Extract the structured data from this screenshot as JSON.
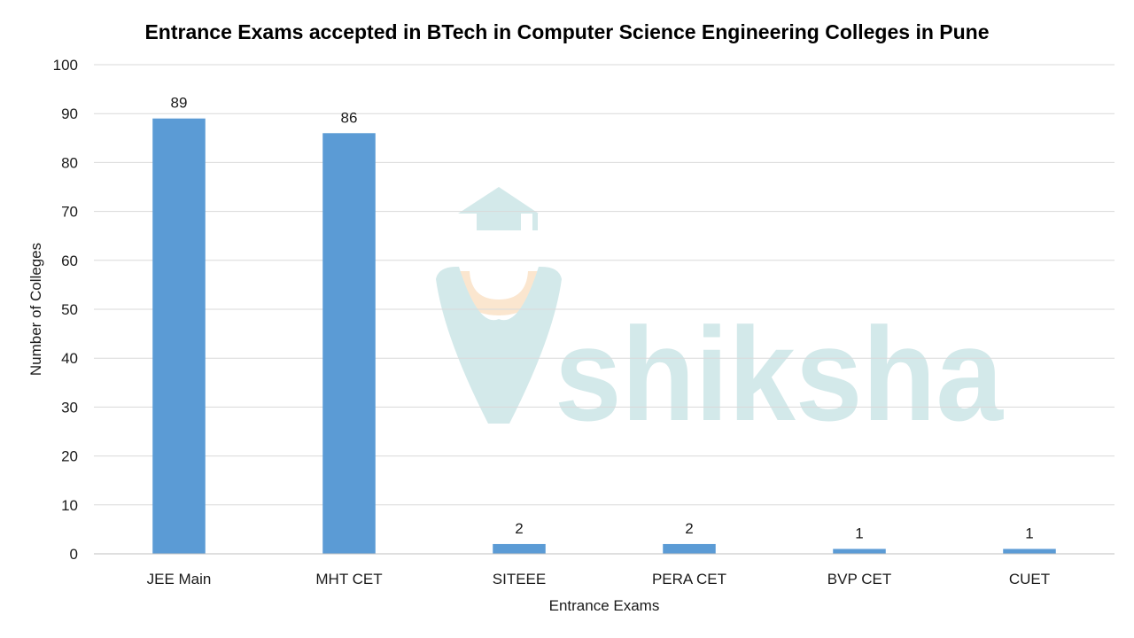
{
  "watermark": {
    "text": "shiksha",
    "colors": {
      "teal": "#d3e9ea",
      "peach": "#fbe6cf"
    }
  },
  "colors": {
    "bar": "#5b9bd5",
    "grid": "#d9d9d9",
    "axis": "#bfbfbf"
  },
  "chart_data": {
    "type": "bar",
    "title": "Entrance Exams accepted in BTech  in Computer Science Engineering Colleges in Pune",
    "xlabel": "Entrance Exams",
    "ylabel": "Number of Colleges",
    "categories": [
      "JEE Main",
      "MHT CET",
      "SITEEE",
      "PERA CET",
      "BVP CET",
      "CUET"
    ],
    "values": [
      89,
      86,
      2,
      2,
      1,
      1
    ],
    "ylim": [
      0,
      100
    ],
    "yticks": [
      0,
      10,
      20,
      30,
      40,
      50,
      60,
      70,
      80,
      90,
      100
    ],
    "grid": true,
    "legend": "none",
    "data_labels": true
  }
}
